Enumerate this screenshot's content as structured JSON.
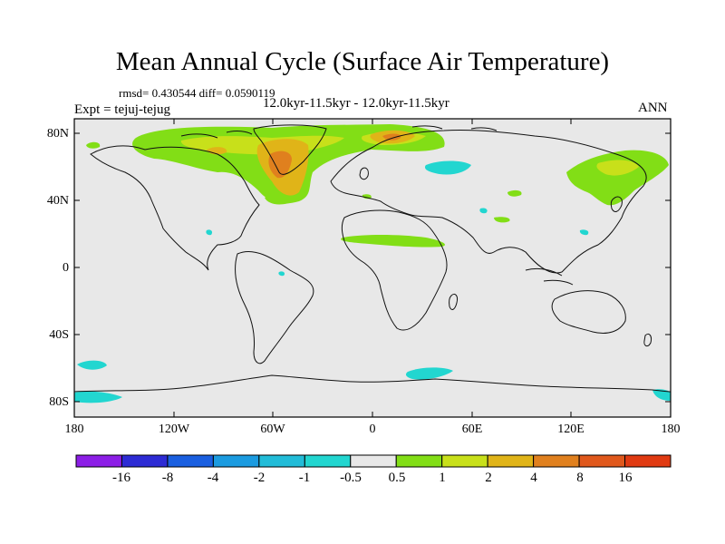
{
  "title": "Mean Annual Cycle (Surface Air Temperature)",
  "stats": {
    "rmsd_label": "rmsd=",
    "rmsd": "0.430544",
    "diff_label": "diff=",
    "diff": "0.0590119"
  },
  "expt": "Expt = tejuj-tejug",
  "period": "12.0kyr-11.5kyr - 12.0kyr-11.5kyr",
  "season": "ANN",
  "lat_labels": [
    "80N",
    "40N",
    "0",
    "40S",
    "80S"
  ],
  "lon_labels": [
    "180",
    "120W",
    "60W",
    "0",
    "60E",
    "120E",
    "180"
  ],
  "colorbar": {
    "labels": [
      "-16",
      "-8",
      "-4",
      "-2",
      "-1",
      "-0.5",
      "0.5",
      "1",
      "2",
      "4",
      "8",
      "16"
    ],
    "colors": [
      "#8c1ee6",
      "#2d2bd4",
      "#1a5fe0",
      "#1b9be0",
      "#22bcd8",
      "#22d6d0",
      "#e8e8e8",
      "#82de16",
      "#c8e01a",
      "#e0b418",
      "#e0801e",
      "#e0581c",
      "#e03a12"
    ]
  },
  "colors": {
    "background": "#e8e8e8",
    "coast": "#111111"
  }
}
